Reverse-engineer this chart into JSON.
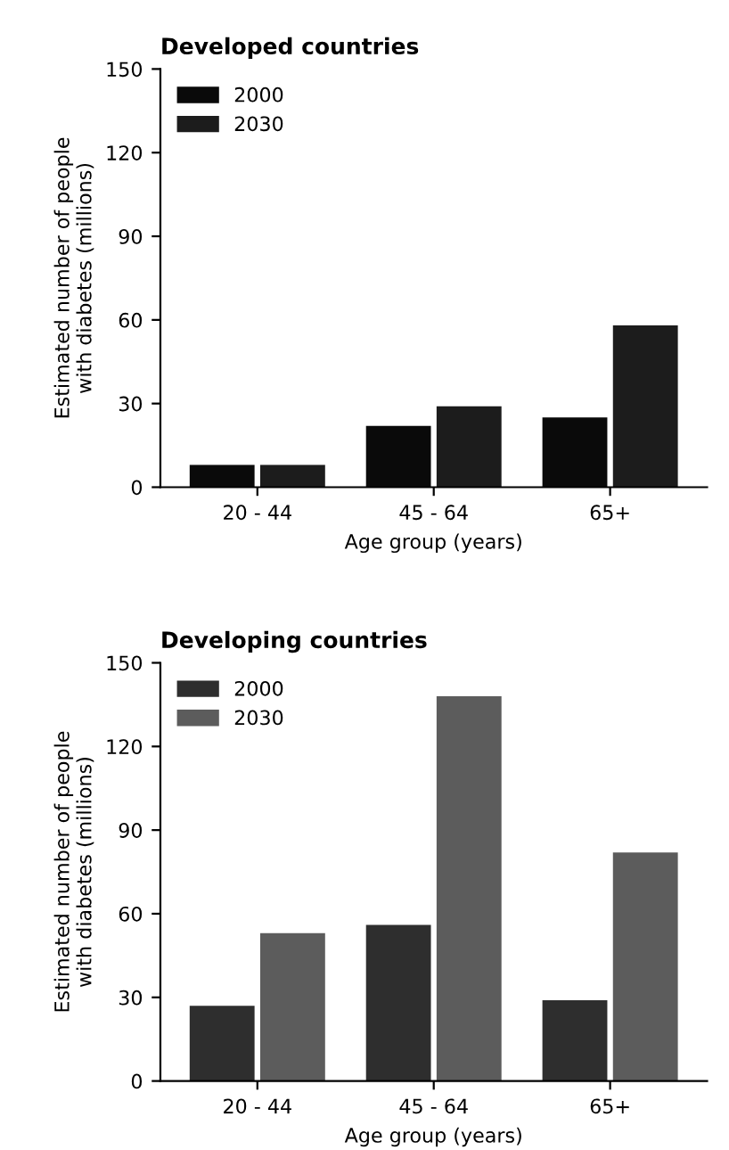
{
  "chart_data": [
    {
      "type": "bar",
      "title": "Developed countries",
      "xlabel": "Age group (years)",
      "ylabel": "Estimated number of people\nwith diabetes (millions)",
      "categories": [
        "20 - 44",
        "45 - 64",
        "65+"
      ],
      "series": [
        {
          "name": "2000",
          "color": "#0a0a0a",
          "values": [
            8,
            22,
            25
          ]
        },
        {
          "name": "2030",
          "color": "#1c1c1c",
          "values": [
            8,
            29,
            58
          ]
        }
      ],
      "ylim": [
        0,
        150
      ],
      "yticks": [
        0,
        30,
        60,
        90,
        120,
        150
      ],
      "grid": false,
      "legend": "top left"
    },
    {
      "type": "bar",
      "title": "Developing countries",
      "xlabel": "Age group (years)",
      "ylabel": "Estimated number of people\nwith diabetes (millions)",
      "categories": [
        "20 - 44",
        "45 - 64",
        "65+"
      ],
      "series": [
        {
          "name": "2000",
          "color": "#2e2e2e",
          "values": [
            27,
            56,
            29
          ]
        },
        {
          "name": "2030",
          "color": "#5c5c5c",
          "values": [
            53,
            138,
            82
          ]
        }
      ],
      "ylim": [
        0,
        150
      ],
      "yticks": [
        0,
        30,
        60,
        90,
        120,
        150
      ],
      "grid": false,
      "legend": "top left"
    }
  ]
}
